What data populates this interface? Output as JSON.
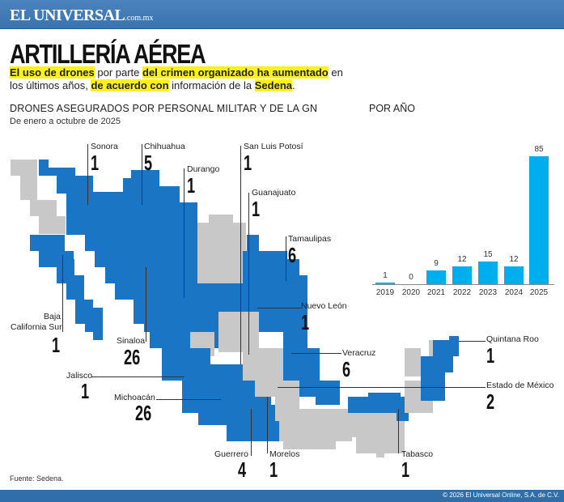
{
  "header": {
    "brand": "EL UNIVERSAL",
    "brand_suffix": ".com.mx"
  },
  "title": "ARTILLERÍA AÉREA",
  "lede": {
    "p1": "El uso de drones",
    "p2": " por parte ",
    "p3": "del crimen organizado ha aumentado",
    "p4": " en los últimos años, ",
    "p5": "de acuerdo con",
    "p6": " información de la ",
    "p7": "Sedena",
    "p8": "."
  },
  "map_section": {
    "title": "DRONES ASEGURADOS POR PERSONAL MILITAR Y DE LA GN",
    "subtitle": "De enero a octubre de 2025"
  },
  "colors": {
    "state_with_drones": "#1a75c4",
    "state_without": "#c8c8c8",
    "bar": "#00aeef",
    "highlight": "#fff21a",
    "header_bar": "#3f7bb8"
  },
  "chart_data": [
    {
      "type": "bar",
      "title": "POR AÑO",
      "categories": [
        "2019",
        "2020",
        "2021",
        "2022",
        "2023",
        "2024",
        "2025"
      ],
      "values": [
        1,
        0,
        9,
        12,
        15,
        12,
        85
      ],
      "xlabel": "",
      "ylabel": "",
      "ylim": [
        0,
        90
      ],
      "grid": false,
      "data_labels": true
    },
    {
      "type": "table",
      "title": "DRONES ASEGURADOS POR PERSONAL MILITAR Y DE LA GN",
      "subtitle": "De enero a octubre de 2025",
      "categories": [
        "Sonora",
        "Chihuahua",
        "Durango",
        "San Luis Potosí",
        "Guanajuato",
        "Tamaulipas",
        "Nuevo León",
        "Baja California Sur",
        "Sinaloa",
        "Jalisco",
        "Michoacán",
        "Guerrero",
        "Morelos",
        "Veracruz",
        "Quintana Roo",
        "Estado de México",
        "Tabasco"
      ],
      "values": [
        1,
        5,
        1,
        1,
        1,
        6,
        1,
        1,
        26,
        1,
        26,
        4,
        1,
        6,
        1,
        2,
        1
      ]
    }
  ],
  "states": [
    {
      "name": "Sonora",
      "value": "1"
    },
    {
      "name": "Chihuahua",
      "value": "5"
    },
    {
      "name": "Durango",
      "value": "1"
    },
    {
      "name": "San Luis Potosí",
      "value": "1"
    },
    {
      "name": "Guanajuato",
      "value": "1"
    },
    {
      "name": "Tamaulipas",
      "value": "6"
    },
    {
      "name": "Nuevo León",
      "value": "1"
    },
    {
      "name": "Baja",
      "name2": "California Sur",
      "value": "1"
    },
    {
      "name": "Sinaloa",
      "value": "26"
    },
    {
      "name": "Jalisco",
      "value": "1"
    },
    {
      "name": "Michoacán",
      "value": "26"
    },
    {
      "name": "Guerrero",
      "value": "4"
    },
    {
      "name": "Morelos",
      "value": "1"
    },
    {
      "name": "Veracruz",
      "value": "6"
    },
    {
      "name": "Quintana Roo",
      "value": "1"
    },
    {
      "name": "Estado de México",
      "value": "2"
    },
    {
      "name": "Tabasco",
      "value": "1"
    }
  ],
  "source": "Fuente: Sedena.",
  "footer": {
    "copyright": "© 2026 El Universal Online, S.A. de C.V."
  }
}
